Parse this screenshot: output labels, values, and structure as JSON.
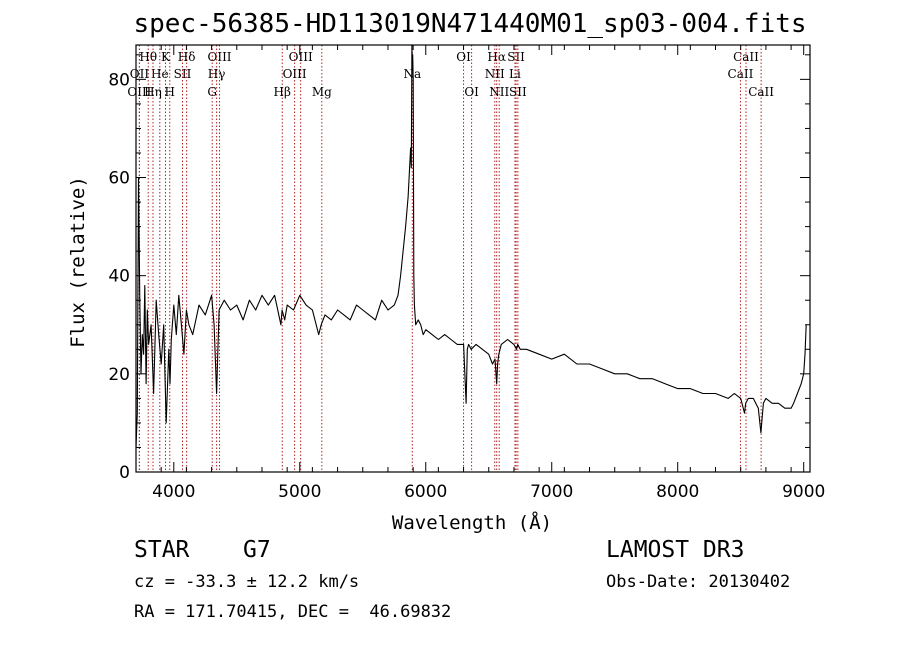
{
  "chart_data": {
    "type": "line",
    "title": "spec-56385-HD113019N471440M01_sp03-004.fits",
    "xlabel": "Wavelength (Å)",
    "ylabel": "Flux (relative)",
    "xlim": [
      3700,
      9050
    ],
    "ylim": [
      0,
      87
    ],
    "xticks": [
      4000,
      5000,
      6000,
      7000,
      8000,
      9000
    ],
    "yticks": [
      0,
      20,
      40,
      60,
      80
    ],
    "series": [
      {
        "name": "spectrum",
        "x": [
          3700,
          3710,
          3720,
          3730,
          3740,
          3750,
          3760,
          3770,
          3780,
          3790,
          3800,
          3820,
          3840,
          3860,
          3880,
          3900,
          3920,
          3940,
          3960,
          3970,
          3980,
          4000,
          4020,
          4040,
          4060,
          4080,
          4100,
          4120,
          4150,
          4200,
          4250,
          4300,
          4320,
          4340,
          4360,
          4400,
          4450,
          4500,
          4550,
          4600,
          4650,
          4700,
          4750,
          4800,
          4850,
          4860,
          4880,
          4900,
          4950,
          5000,
          5050,
          5100,
          5150,
          5170,
          5200,
          5250,
          5300,
          5350,
          5400,
          5450,
          5500,
          5550,
          5600,
          5650,
          5700,
          5750,
          5780,
          5800,
          5820,
          5840,
          5860,
          5880,
          5885,
          5890,
          5893,
          5896,
          5900,
          5905,
          5910,
          5920,
          5940,
          5960,
          5980,
          6000,
          6050,
          6100,
          6150,
          6200,
          6250,
          6300,
          6320,
          6330,
          6340,
          6360,
          6400,
          6450,
          6500,
          6530,
          6550,
          6563,
          6570,
          6580,
          6600,
          6650,
          6700,
          6720,
          6730,
          6750,
          6800,
          6900,
          7000,
          7100,
          7200,
          7300,
          7400,
          7500,
          7600,
          7700,
          7800,
          7900,
          8000,
          8100,
          8200,
          8300,
          8400,
          8450,
          8500,
          8530,
          8540,
          8560,
          8600,
          8640,
          8660,
          8680,
          8700,
          8750,
          8800,
          8850,
          8900,
          8920,
          8950,
          8980,
          9000,
          9010,
          9020
        ],
        "values": [
          5,
          12,
          60,
          35,
          20,
          28,
          24,
          38,
          18,
          33,
          26,
          30,
          16,
          35,
          28,
          22,
          30,
          10,
          25,
          18,
          27,
          34,
          28,
          36,
          30,
          24,
          33,
          30,
          28,
          34,
          32,
          36,
          30,
          16,
          33,
          35,
          33,
          34,
          31,
          35,
          33,
          36,
          34,
          36,
          30,
          33,
          31,
          34,
          33,
          36,
          34,
          33,
          28,
          30,
          32,
          31,
          33,
          32,
          31,
          34,
          33,
          32,
          31,
          35,
          33,
          34,
          36,
          40,
          45,
          50,
          56,
          66,
          62,
          87,
          82,
          85,
          80,
          40,
          34,
          30,
          31,
          30,
          28,
          29,
          28,
          27,
          28,
          27,
          26,
          26,
          14,
          25,
          26,
          25,
          26,
          25,
          24,
          22,
          23,
          18,
          22,
          24,
          26,
          27,
          26,
          25,
          26,
          25,
          25,
          24,
          23,
          24,
          22,
          22,
          21,
          20,
          20,
          19,
          19,
          18,
          17,
          17,
          16,
          16,
          15,
          16,
          15,
          12,
          14,
          15,
          15,
          13,
          8,
          14,
          15,
          14,
          14,
          13,
          13,
          14,
          16,
          18,
          20,
          24,
          30
        ]
      }
    ],
    "spectral_lines": [
      {
        "label": "Hθ",
        "wl": 3797,
        "row": 0
      },
      {
        "label": "OII",
        "wl": 3727,
        "row": 1
      },
      {
        "label": "OIII",
        "wl": 3727,
        "row": 2
      },
      {
        "label": "He",
        "wl": 3889,
        "row": 1
      },
      {
        "label": "Hη",
        "wl": 3835,
        "row": 2
      },
      {
        "label": "K",
        "wl": 3934,
        "row": 0
      },
      {
        "label": "SII",
        "wl": 4069,
        "row": 1
      },
      {
        "label": "H",
        "wl": 3968,
        "row": 2
      },
      {
        "label": "Hδ",
        "wl": 4102,
        "row": 0
      },
      {
        "label": "OIII",
        "wl": 4363,
        "row": 0
      },
      {
        "label": "Hγ",
        "wl": 4340,
        "row": 1
      },
      {
        "label": "G",
        "wl": 4305,
        "row": 2
      },
      {
        "label": "Hβ",
        "wl": 4861,
        "row": 2
      },
      {
        "label": "OIII",
        "wl": 5007,
        "row": 0
      },
      {
        "label": "OIII",
        "wl": 4959,
        "row": 1
      },
      {
        "label": "Mg",
        "wl": 5175,
        "row": 2
      },
      {
        "label": "Na",
        "wl": 5893,
        "row": 1
      },
      {
        "label": "OI",
        "wl": 6300,
        "row": 0
      },
      {
        "label": "OI",
        "wl": 6364,
        "row": 2
      },
      {
        "label": "Hα",
        "wl": 6563,
        "row": 0
      },
      {
        "label": "NII",
        "wl": 6548,
        "row": 1
      },
      {
        "label": "NII",
        "wl": 6583,
        "row": 2
      },
      {
        "label": "SII",
        "wl": 6717,
        "row": 0
      },
      {
        "label": "Li",
        "wl": 6708,
        "row": 1
      },
      {
        "label": "SII",
        "wl": 6731,
        "row": 2
      },
      {
        "label": "CaII",
        "wl": 8542,
        "row": 0
      },
      {
        "label": "CaII",
        "wl": 8498,
        "row": 1
      },
      {
        "label": "CaII",
        "wl": 8662,
        "row": 2
      }
    ],
    "line_color": "#b22222"
  },
  "info": {
    "object_class": "STAR",
    "subclass": "G7",
    "survey": "LAMOST DR3",
    "cz": "cz = -33.3 ± 12.2 km/s",
    "obs_date": "Obs-Date: 20130402",
    "coords": "RA = 171.70415, DEC =  46.69832"
  }
}
